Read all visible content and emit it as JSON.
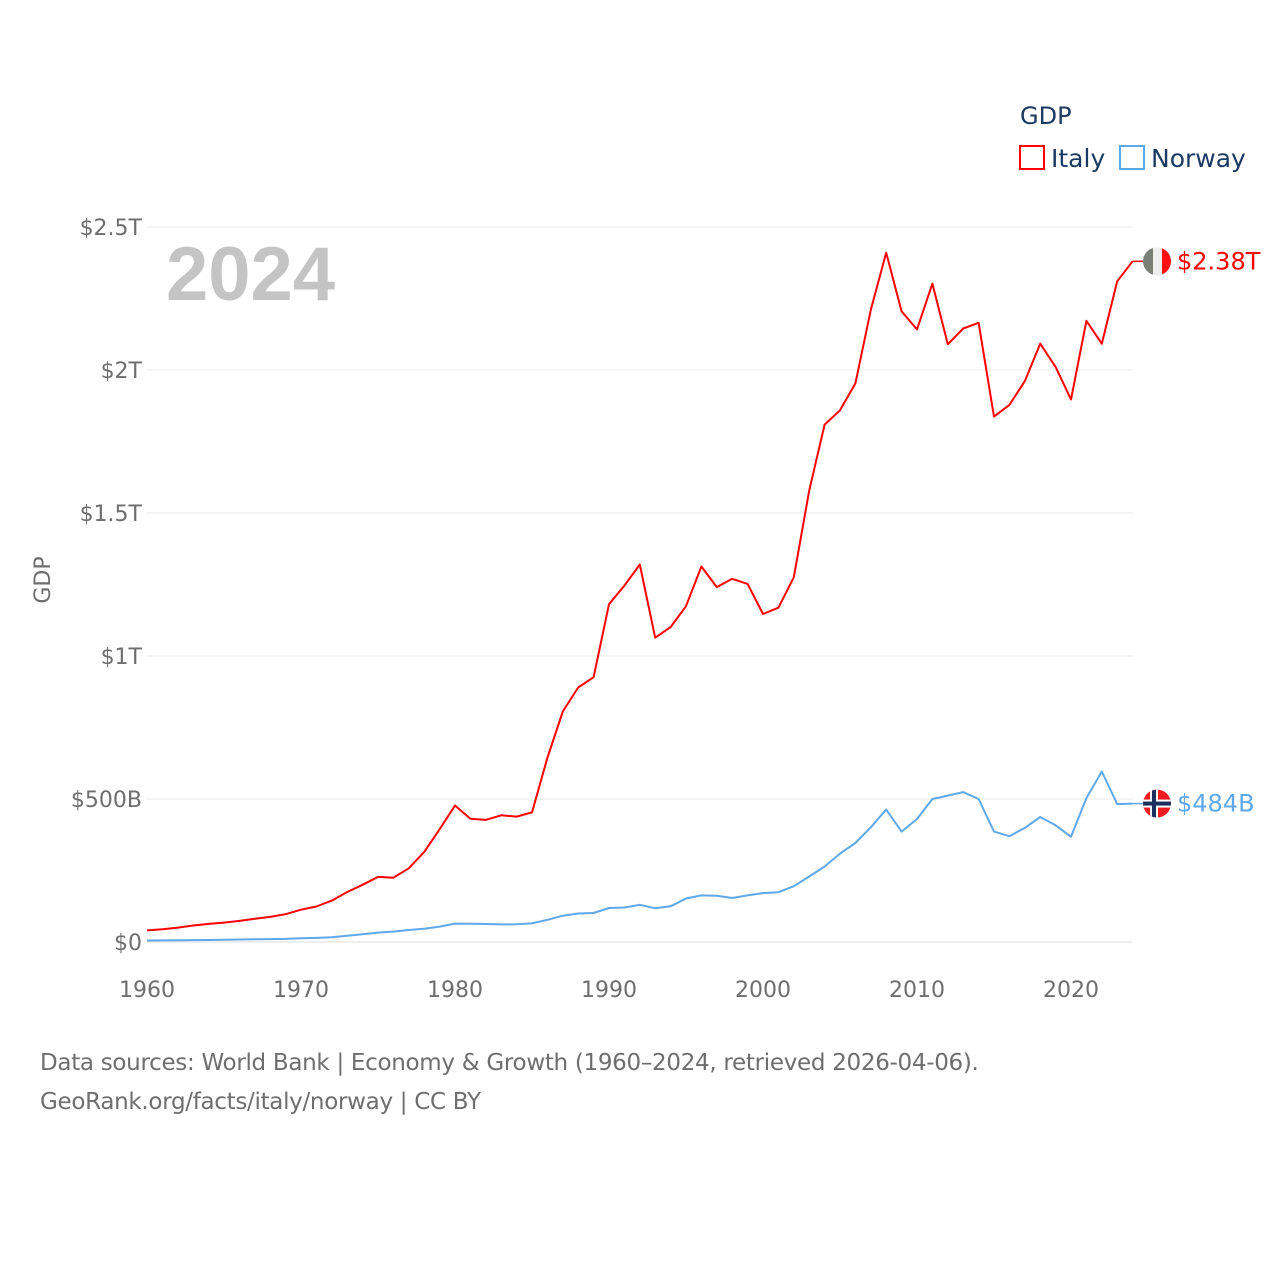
{
  "chart_data": {
    "type": "line",
    "ylabel": "GDP",
    "xlabel": "",
    "year_overlay": "2024",
    "legend": {
      "title": "GDP",
      "placement": "top-right"
    },
    "xlim": [
      1960,
      2024
    ],
    "ylim": [
      0,
      2500000000000
    ],
    "x_ticks": [
      1960,
      1970,
      1980,
      1990,
      2000,
      2010,
      2020
    ],
    "x_tick_labels": [
      "1960",
      "1970",
      "1980",
      "1990",
      "2000",
      "2010",
      "2020"
    ],
    "y_ticks": [
      0,
      500000000000,
      1000000000000,
      1500000000000,
      2000000000000,
      2500000000000
    ],
    "y_tick_labels": [
      "$0",
      "$500B",
      "$1T",
      "$1.5T",
      "$2T",
      "$2.5T"
    ],
    "grid": true,
    "x": [
      1960,
      1961,
      1962,
      1963,
      1964,
      1965,
      1966,
      1967,
      1968,
      1969,
      1970,
      1971,
      1972,
      1973,
      1974,
      1975,
      1976,
      1977,
      1978,
      1979,
      1980,
      1981,
      1982,
      1983,
      1984,
      1985,
      1986,
      1987,
      1988,
      1989,
      1990,
      1991,
      1992,
      1993,
      1994,
      1995,
      1996,
      1997,
      1998,
      1999,
      2000,
      2001,
      2002,
      2003,
      2004,
      2005,
      2006,
      2007,
      2008,
      2009,
      2010,
      2011,
      2012,
      2013,
      2014,
      2015,
      2016,
      2017,
      2018,
      2019,
      2020,
      2021,
      2022,
      2023,
      2024
    ],
    "series": [
      {
        "name": "Italy",
        "color": "#ff0000",
        "end_label": "$2.38T",
        "flag": "italy-flag",
        "values_billion": [
          40.4,
          44.8,
          50.4,
          57.7,
          63.2,
          67.9,
          73.7,
          81.2,
          87.9,
          97.1,
          113.0,
          124.3,
          144.8,
          174.9,
          199.9,
          227.7,
          224.9,
          257.6,
          315.0,
          394.0,
          477.3,
          430.7,
          427.0,
          443.0,
          438.5,
          453.0,
          644.0,
          806.0,
          890.0,
          926.0,
          1181.0,
          1246.0,
          1320.0,
          1064.0,
          1101.0,
          1174.0,
          1313.0,
          1241.0,
          1270.0,
          1252.0,
          1147.0,
          1169.0,
          1275.0,
          1578.0,
          1809.0,
          1859.0,
          1953.0,
          2210.0,
          2410.0,
          2205.0,
          2142.0,
          2302.0,
          2090.0,
          2145.0,
          2165.0,
          1837.0,
          1878.0,
          1961.0,
          2092.0,
          2011.0,
          1897.0,
          2172.0,
          2092.0,
          2310.0,
          2380.0
        ]
      },
      {
        "name": "Norway",
        "color": "#5fa8ea",
        "end_label": "$484B",
        "flag": "norway-flag",
        "values_billion": [
          5.2,
          5.6,
          6.1,
          6.5,
          7.1,
          7.9,
          8.6,
          9.4,
          10.1,
          11.0,
          12.8,
          14.3,
          16.9,
          22.0,
          26.8,
          32.7,
          36.5,
          42.0,
          46.6,
          54.0,
          64.5,
          63.5,
          63.0,
          61.6,
          62.0,
          64.9,
          77.5,
          92.0,
          99.7,
          101.5,
          119.0,
          120.5,
          130.0,
          118.0,
          125.0,
          152.0,
          163.0,
          162.0,
          154.0,
          163.0,
          171.0,
          174.0,
          195.0,
          229.0,
          264.0,
          309.0,
          346.0,
          401.0,
          463.0,
          386.0,
          430.0,
          500.0,
          512.0,
          524.0,
          500.0,
          386.0,
          370.0,
          399.0,
          437.0,
          408.0,
          368.0,
          503.0,
          596.0,
          482.0,
          484.0
        ]
      }
    ]
  },
  "source": {
    "line1": "Data sources: World Bank | Economy & Growth (1960–2024, retrieved 2026-04-06).",
    "line2": "GeoRank.org/facts/italy/norway | CC BY"
  }
}
